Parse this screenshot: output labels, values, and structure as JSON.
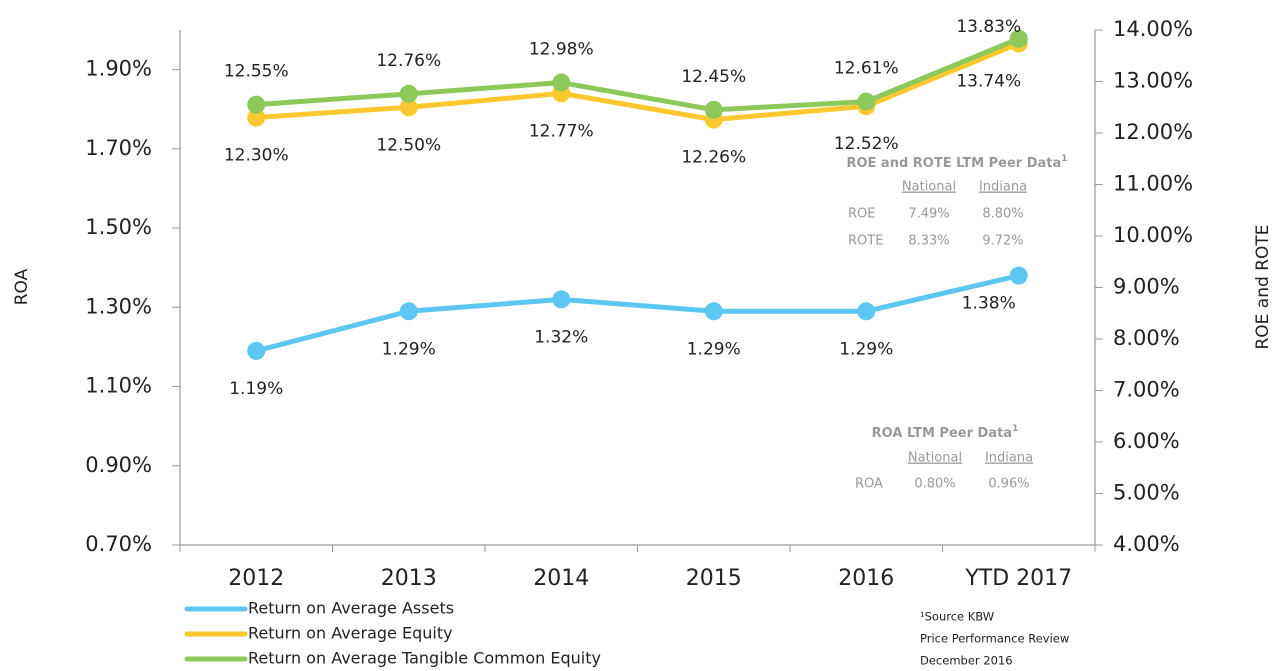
{
  "chart_data": {
    "type": "line",
    "categories": [
      "2012",
      "2013",
      "2014",
      "2015",
      "2016",
      "YTD 2017"
    ],
    "series": [
      {
        "name": "Return on Average Assets",
        "color": "#5ec6f2",
        "axis": "y",
        "label_side": "below",
        "values": [
          1.19,
          1.29,
          1.32,
          1.29,
          1.29,
          1.38
        ],
        "value_labels": [
          "1.19%",
          "1.29%",
          "1.32%",
          "1.29%",
          "1.29%",
          "1.38%"
        ]
      },
      {
        "name": "Return on Average Equity",
        "color": "#fdc82f",
        "axis": "y2",
        "label_side": "below",
        "values": [
          12.3,
          12.5,
          12.77,
          12.26,
          12.52,
          13.74
        ],
        "value_labels": [
          "12.30%",
          "12.50%",
          "12.77%",
          "12.26%",
          "12.52%",
          "13.74%"
        ]
      },
      {
        "name": "Return on Average Tangible Common Equity",
        "color": "#8cc85a",
        "axis": "y2",
        "label_side": "above",
        "values": [
          12.55,
          12.76,
          12.98,
          12.45,
          12.61,
          13.83
        ],
        "value_labels": [
          "12.55%",
          "12.76%",
          "12.98%",
          "12.45%",
          "12.61%",
          "13.83%"
        ]
      }
    ],
    "ylabel": "ROA",
    "y2label": "ROE and ROTE",
    "ylim": [
      0.7,
      2.0
    ],
    "yticks": [
      {
        "value": 0.7,
        "label": "0.70%"
      },
      {
        "value": 0.9,
        "label": "0.90%"
      },
      {
        "value": 1.1,
        "label": "1.10%"
      },
      {
        "value": 1.3,
        "label": "1.30%"
      },
      {
        "value": 1.5,
        "label": "1.50%"
      },
      {
        "value": 1.7,
        "label": "1.70%"
      },
      {
        "value": 1.9,
        "label": "1.90%"
      }
    ],
    "y2lim": [
      4,
      14
    ],
    "y2ticks": [
      {
        "value": 4,
        "label": "4.00%"
      },
      {
        "value": 5,
        "label": "5.00%"
      },
      {
        "value": 6,
        "label": "6.00%"
      },
      {
        "value": 7,
        "label": "7.00%"
      },
      {
        "value": 8,
        "label": "8.00%"
      },
      {
        "value": 9,
        "label": "9.00%"
      },
      {
        "value": 10,
        "label": "10.00%"
      },
      {
        "value": 11,
        "label": "11.00%"
      },
      {
        "value": 12,
        "label": "12.00%"
      },
      {
        "value": 13,
        "label": "13.00%"
      },
      {
        "value": 14,
        "label": "14.00%"
      }
    ],
    "peer_tables": [
      {
        "title": "ROE and ROTE LTM Peer Data",
        "footnote": "1",
        "columns": [
          "National",
          "Indiana"
        ],
        "rows": [
          {
            "label": "ROE",
            "cells": [
              "7.49%",
              "8.80%"
            ]
          },
          {
            "label": "ROTE",
            "cells": [
              "8.33%",
              "9.72%"
            ]
          }
        ]
      },
      {
        "title": "ROA LTM Peer Data",
        "footnote": "1",
        "columns": [
          "National",
          "Indiana"
        ],
        "rows": [
          {
            "label": "ROA",
            "cells": [
              "0.80%",
              "0.96%"
            ]
          }
        ]
      }
    ],
    "source": [
      "¹Source KBW",
      "Price Performance Review",
      "December 2016"
    ]
  }
}
